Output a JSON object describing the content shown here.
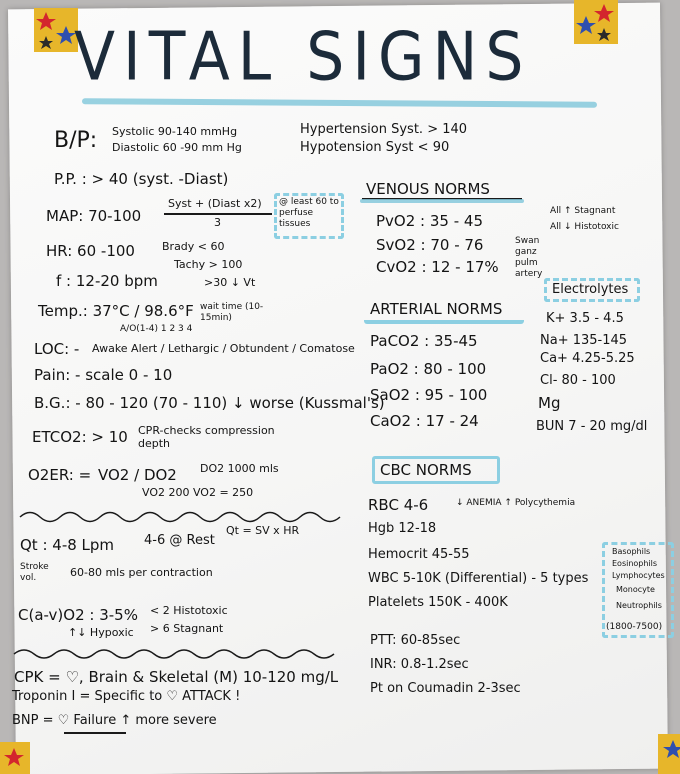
{
  "title": "VITAL SIGNS",
  "left": {
    "bp_label": "B/P:",
    "bp_systolic": "Systolic 90-140 mmHg",
    "bp_diastolic": "Diastolic 60 -90 mm Hg",
    "hypertension": "Hypertension Syst. > 140",
    "hypotension": "Hypotension Syst < 90",
    "pp": "P.P. : > 40 (syst. -Diast)",
    "map_label": "MAP: 70-100",
    "map_formula_num": "Syst + (Diast x2)",
    "map_formula_den": "3",
    "map_note": "@ least 60 to perfuse tissues",
    "hr": "HR: 60 -100",
    "bradycardia": "Brady < 60",
    "tachycardia": "Tachy > 100",
    "f": "f : 12-20 bpm",
    "f_note": ">30 ↓ Vt",
    "temp": "Temp.: 37°C / 98.6°F",
    "temp_note": "wait time (10-15min)",
    "loc_label": "LOC: -",
    "loc_scale": "Awake Alert / Lethargic / Obtundent / Comatose",
    "loc_numbers": "A/O(1-4)  1  2  3  4",
    "pain": "Pain: - scale 0 - 10",
    "bg": "B.G.: - 80 - 120 (70 - 110) ↓ worse (Kussmal's)",
    "etco2": "ETCO2: > 10",
    "etco2_note": "CPR-checks compression depth",
    "oer_label": "O2ER: =",
    "oer_formula": "VO2 / DO2",
    "oer_do2": "DO2 1000 mls",
    "oer_vo2": "VO2 200  VO2 = 250",
    "qt": "Qt : 4-8 Lpm",
    "qt_rest": "4-6 @ Rest",
    "qt_formula": "Qt = SV x HR",
    "stroke_label": "Stroke vol.",
    "stroke": "60-80 mls per contraction",
    "cav": "C(a-v)O2 : 3-5%",
    "cav_histotoxic": "< 2 Histotoxic",
    "cav_hypoxic": "↑↓ Hypoxic",
    "cav_stagnant": "> 6 Stagnant",
    "cpk": "CPK = ♡, Brain & Skeletal (M) 10-120 mg/L",
    "troponin": "Troponin I = Specific to ♡ ATTACK !",
    "bnp": "BNP = ♡ Failure ↑ more severe"
  },
  "venous": {
    "header": "VENOUS NORMS",
    "pvo2": "PvO2 : 35 - 45",
    "svo2": "SvO2 : 70 - 76",
    "cvo2": "CvO2 : 12 - 17%",
    "swan": "Swan ganz",
    "pulm": "pulm artery",
    "stagnant": "All ↑ Stagnant",
    "histotoxic": "All ↓ Histotoxic"
  },
  "arterial": {
    "header": "ARTERIAL NORMS",
    "paco2": "PaCO2 : 35-45",
    "pao2": "PaO2 : 80 - 100",
    "sao2": "SaO2 : 95 - 100",
    "cao2": "CaO2 : 17 - 24"
  },
  "electrolytes": {
    "header": "Electrolytes",
    "k": "K+  3.5 - 4.5",
    "na": "Na+  135-145",
    "ca": "Ca+  4.25-5.25",
    "cl": "Cl-  80 - 100",
    "mg": "Mg",
    "bun": "BUN  7 - 20 mg/dl"
  },
  "cbc": {
    "header": "CBC NORMS",
    "rbc": "RBC  4-6",
    "rbc_note": "↓ ANEMIA ↑ Polycythemia",
    "hgb": "Hgb  12-18",
    "hct": "Hemocrit 45-55",
    "wbc": "WBC  5-10K (Differential) - 5 types",
    "platelets": "Platelets  150K - 400K",
    "wbc_types": [
      "Basophils",
      "Eosinophils",
      "Lymphocytes",
      "Monocyte",
      "Neutrophils"
    ],
    "wbc_range": "(1800-7500)",
    "ptt": "PTT: 60-85sec",
    "inr": "INR: 0.8-1.2sec",
    "pt": "Pt on Coumadin 2-3sec"
  }
}
